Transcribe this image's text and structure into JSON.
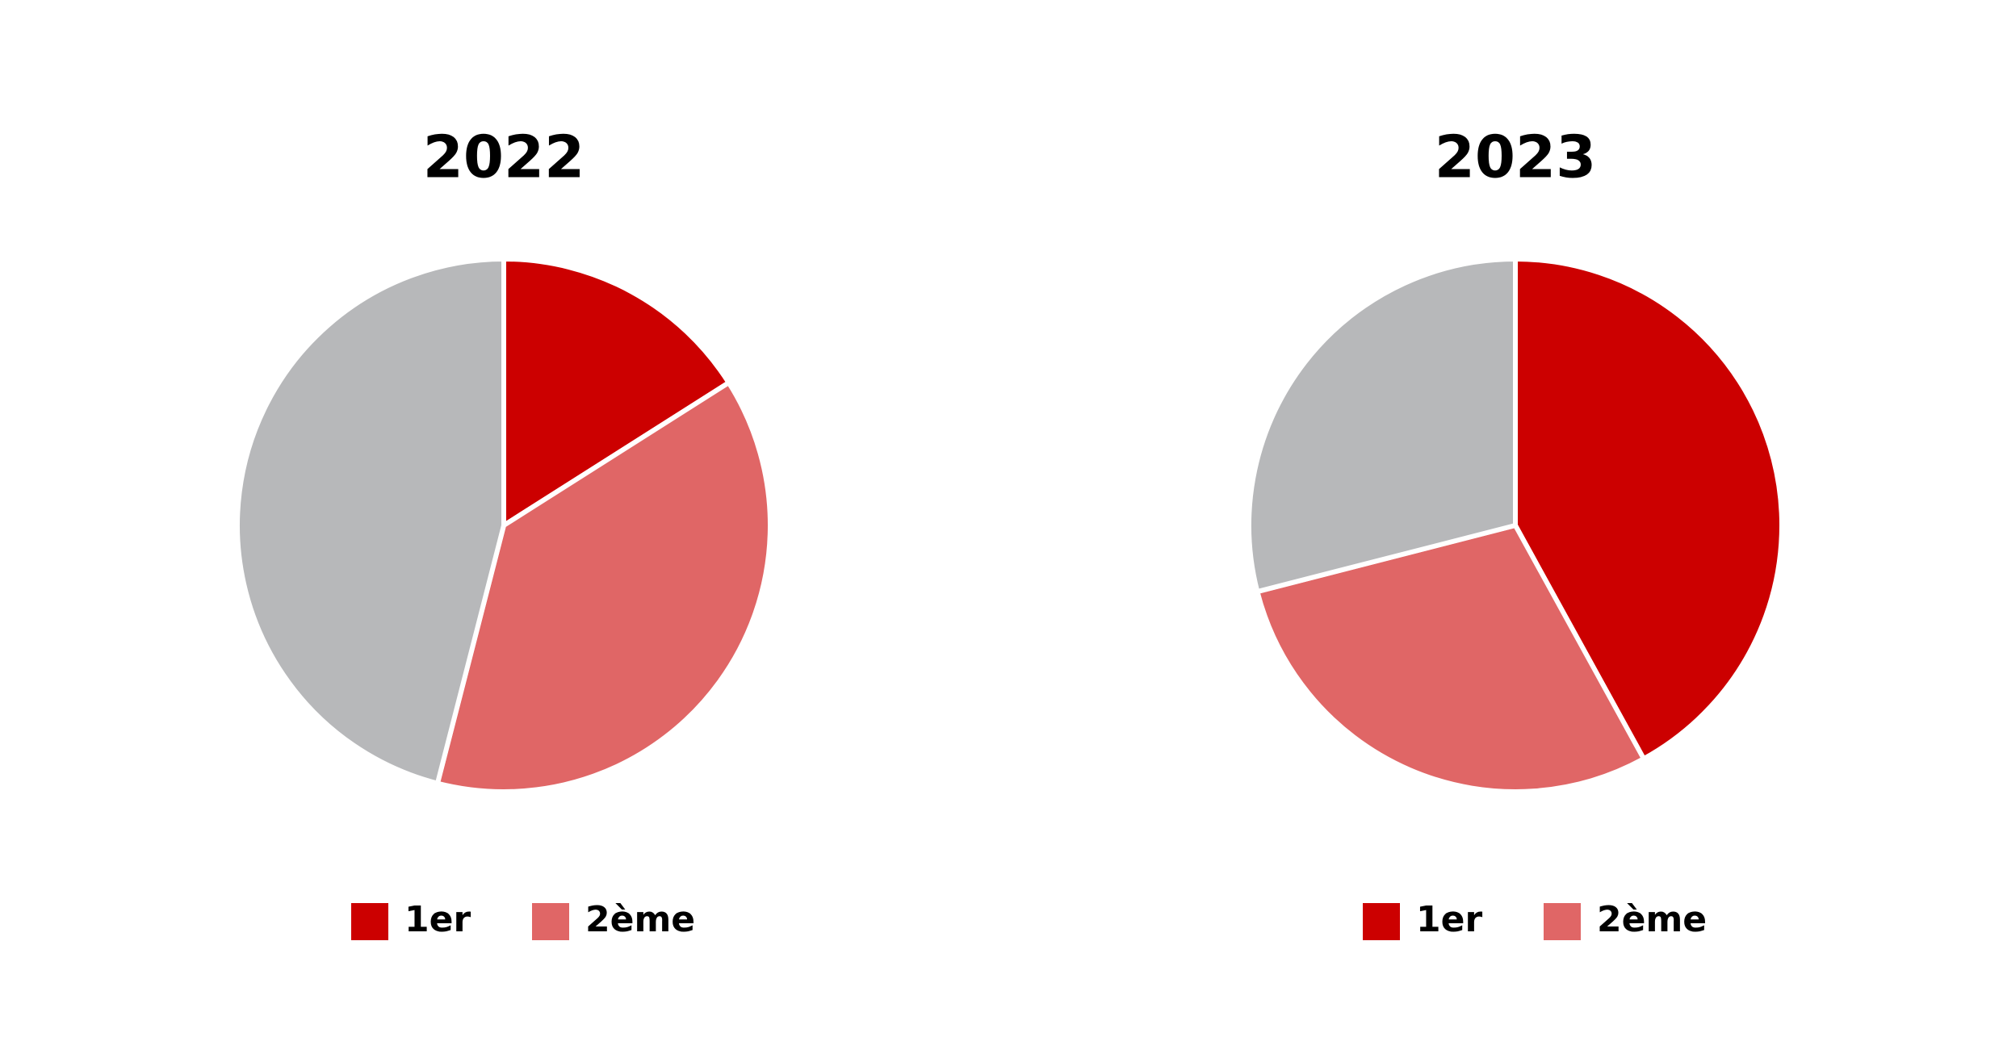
{
  "chart_data": [
    {
      "type": "pie",
      "title": "2022",
      "labels": [
        "1er",
        "2ème",
        null
      ],
      "values": [
        16,
        38,
        46
      ],
      "colors": [
        "#cc0000",
        "#e06666",
        "#b7b8ba"
      ]
    },
    {
      "type": "pie",
      "title": "2023",
      "labels": [
        "1er",
        "2ème",
        null
      ],
      "values": [
        42,
        29,
        29
      ],
      "colors": [
        "#cc0000",
        "#e06666",
        "#b7b8ba"
      ]
    }
  ]
}
